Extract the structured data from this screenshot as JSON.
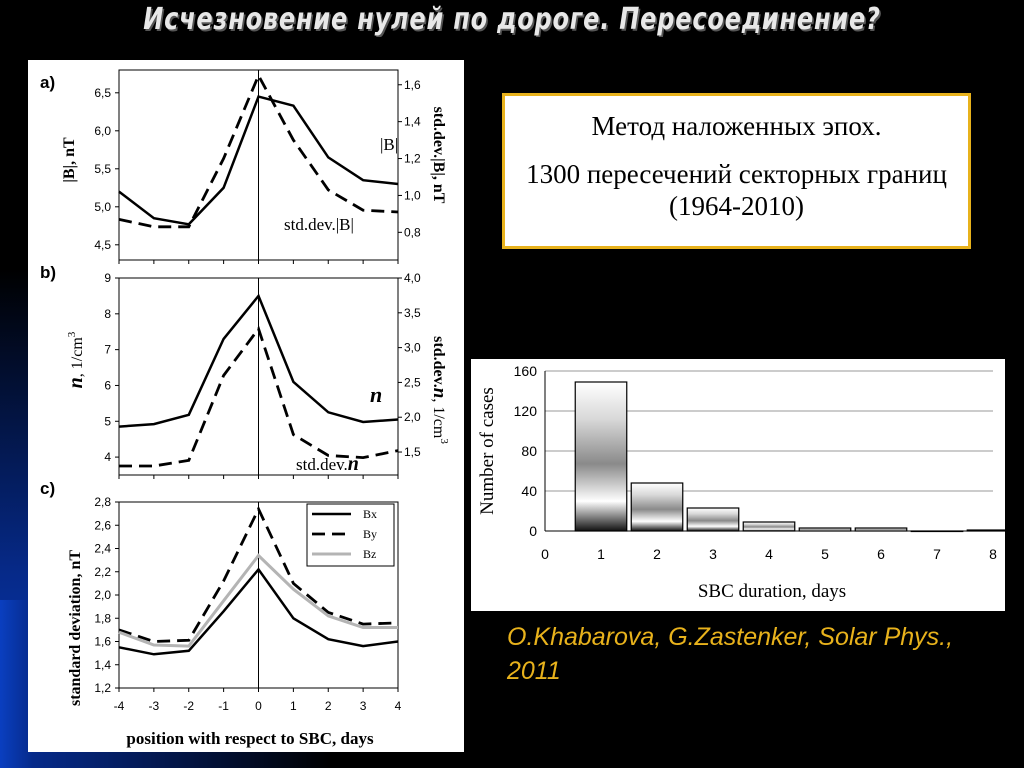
{
  "title": "Исчезновение нулей по дороге. Пересоединение?",
  "info": {
    "line1": "Метод наложенных эпох.",
    "line2": "1300 пересечений секторных границ (1964-2010)"
  },
  "citation": "O.Khabarova, G.Zastenker, Solar Phys., 2011",
  "colors": {
    "box_border": "#e8b21c",
    "citation": "#e8b21c",
    "bz": "#b4b4b4"
  },
  "chart_data": [
    {
      "panel": "a)",
      "type": "line",
      "x": [
        -4,
        -3,
        -2,
        -1,
        0,
        1,
        2,
        3,
        4
      ],
      "xlim": [
        -4,
        4
      ],
      "ylim": [
        4.3,
        6.8
      ],
      "yticks": [
        "4,5",
        "5,0",
        "5,5",
        "6,0",
        "6,5"
      ],
      "ylabel": "|B|, nT",
      "y2lim": [
        0.65,
        1.68
      ],
      "y2ticks": [
        "0,8",
        "1,0",
        "1,2",
        "1,4",
        "1,6"
      ],
      "y2label": "std.dev.|B|, nT",
      "series": [
        {
          "name": "|B|",
          "axis": "left",
          "style": "solid",
          "values": [
            5.2,
            4.85,
            4.77,
            5.25,
            6.45,
            6.33,
            5.65,
            5.35,
            5.3
          ]
        },
        {
          "name": "std.dev.|B|",
          "axis": "right",
          "style": "dashed",
          "values": [
            0.87,
            0.83,
            0.83,
            1.2,
            1.65,
            1.3,
            1.03,
            0.92,
            0.91
          ]
        }
      ]
    },
    {
      "panel": "b)",
      "type": "line",
      "x": [
        -4,
        -3,
        -2,
        -1,
        0,
        1,
        2,
        3,
        4
      ],
      "xlim": [
        -4,
        4
      ],
      "ylim": [
        3.5,
        9.0
      ],
      "yticks": [
        "4",
        "5",
        "6",
        "7",
        "8",
        "9"
      ],
      "ylabel": ", 1/cm",
      "ylabel_symbol": "n",
      "ylabel_exponent": "3",
      "y2lim": [
        1.17,
        4.0
      ],
      "y2ticks": [
        "1,5",
        "2,0",
        "2,5",
        "3,0",
        "3,5",
        "4,0"
      ],
      "y2label_prefix": "std.dev.",
      "y2label_symbol": "n",
      "y2label_suffix": ", 1/cm",
      "y2label_exponent": "3",
      "series": [
        {
          "name": "n",
          "axis": "left",
          "style": "solid",
          "values": [
            4.85,
            4.92,
            5.18,
            7.3,
            8.5,
            6.1,
            5.25,
            4.98,
            5.05
          ]
        },
        {
          "name": "std.dev.",
          "name_symbol": "n",
          "axis": "right",
          "style": "dashed",
          "values": [
            1.3,
            1.3,
            1.38,
            2.6,
            3.27,
            1.75,
            1.45,
            1.42,
            1.52
          ]
        }
      ]
    },
    {
      "panel": "c)",
      "type": "line",
      "x": [
        -4,
        -3,
        -2,
        -1,
        0,
        1,
        2,
        3,
        4
      ],
      "xlim": [
        -4,
        4
      ],
      "ylim": [
        1.2,
        2.8
      ],
      "yticks": [
        "1,2",
        "1,4",
        "1,6",
        "1,8",
        "2,0",
        "2,2",
        "2,4",
        "2,6",
        "2,8"
      ],
      "xticks": [
        "-4",
        "-3",
        "-2",
        "-1",
        "0",
        "1",
        "2",
        "3",
        "4"
      ],
      "ylabel": "standard deviation, nT",
      "xlabel": "position with respect to SBC, days",
      "legend": "top-right",
      "series": [
        {
          "name": "Bx",
          "style": "solid",
          "values": [
            1.55,
            1.49,
            1.52,
            1.86,
            2.22,
            1.8,
            1.62,
            1.56,
            1.6
          ]
        },
        {
          "name": "By",
          "style": "dashed",
          "values": [
            1.7,
            1.6,
            1.61,
            2.12,
            2.74,
            2.1,
            1.85,
            1.75,
            1.76
          ]
        },
        {
          "name": "Bz",
          "style": "gray",
          "values": [
            1.68,
            1.57,
            1.56,
            1.95,
            2.34,
            2.05,
            1.82,
            1.72,
            1.72
          ]
        }
      ]
    },
    {
      "panel": "histogram",
      "type": "bar",
      "categories": [
        1,
        2,
        3,
        4,
        5,
        6,
        7,
        8
      ],
      "values": [
        149,
        48,
        23,
        9,
        3,
        3,
        0,
        1
      ],
      "xlim": [
        0,
        8
      ],
      "ylim": [
        0,
        160
      ],
      "yticks": [
        "0",
        "40",
        "80",
        "120",
        "160"
      ],
      "xticks": [
        "0",
        "1",
        "2",
        "3",
        "4",
        "5",
        "6",
        "7",
        "8"
      ],
      "xlabel": "SBC duration, days",
      "ylabel": "Number of cases",
      "grid": true
    }
  ]
}
